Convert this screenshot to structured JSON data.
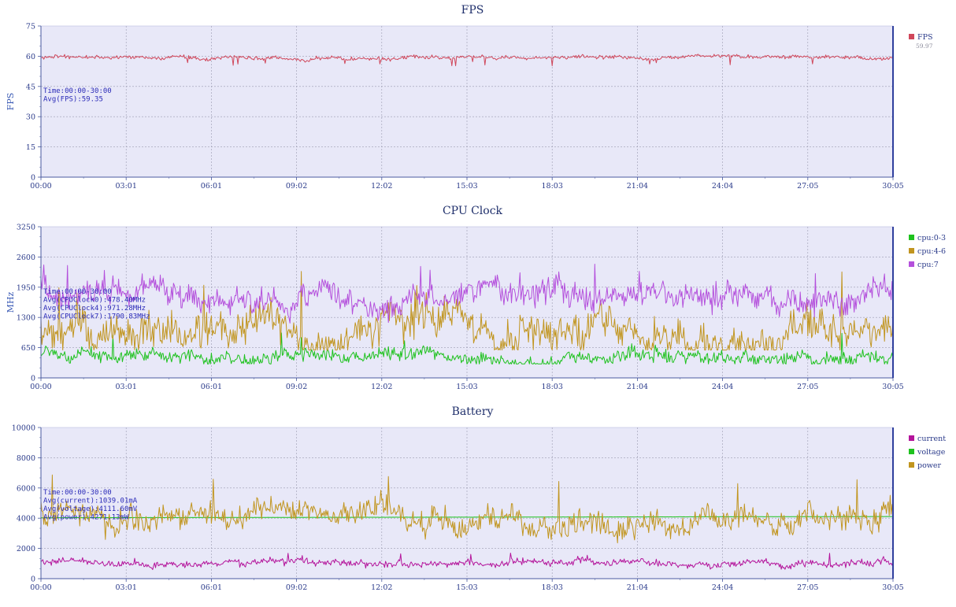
{
  "chart_data": [
    {
      "type": "line",
      "title": "FPS",
      "ylabel": "FPS",
      "ylim": [
        0,
        75
      ],
      "yticks": [
        "0",
        "15",
        "30",
        "45",
        "60",
        "75"
      ],
      "xticks": [
        "00:00",
        "03:01",
        "06:01",
        "09:02",
        "12:02",
        "15:03",
        "18:03",
        "21:04",
        "24:04",
        "27:05",
        "30:05"
      ],
      "x_range": [
        "00:00",
        "30:05"
      ],
      "grid": true,
      "legend_position": "right",
      "annotation": [
        "Time:00:00-30:00",
        "Avg(FPS):59.35"
      ],
      "series": [
        {
          "name": "FPS",
          "color": "#d0475b",
          "legend_value": "59.97",
          "approx_mean": 59.35,
          "approx_noise": 0.8,
          "approx_min": 55
        }
      ]
    },
    {
      "type": "line",
      "title": "CPU Clock",
      "ylabel": "MHz",
      "ylim": [
        0,
        3250
      ],
      "yticks": [
        "0",
        "650",
        "1300",
        "1950",
        "2600",
        "3250"
      ],
      "xticks": [
        "00:00",
        "03:01",
        "06:01",
        "09:02",
        "12:02",
        "15:03",
        "18:03",
        "21:04",
        "24:04",
        "27:05",
        "30:05"
      ],
      "x_range": [
        "00:00",
        "30:05"
      ],
      "grid": true,
      "legend_position": "right",
      "annotation": [
        "Time:00:00-30:00",
        "Avg(CPUClock0):478.40MHz",
        "Avg(CPUClock4):971.28MHz",
        "Avg(CPUClock7):1790.83MHz"
      ],
      "series": [
        {
          "name": "cpu:0-3",
          "color": "#1ec21e",
          "approx_mean": 478,
          "approx_noise": 120,
          "approx_min": 300,
          "approx_max": 1000
        },
        {
          "name": "cpu:4-6",
          "color": "#c1951f",
          "approx_mean": 971,
          "approx_noise": 350,
          "approx_min": 600,
          "approx_max": 2300
        },
        {
          "name": "cpu:7",
          "color": "#b450dc",
          "approx_mean": 1790,
          "approx_noise": 230,
          "approx_min": 1100,
          "approx_max": 2500
        }
      ]
    },
    {
      "type": "line",
      "title": "Battery",
      "ylabel": "",
      "ylim": [
        0,
        10000
      ],
      "yticks": [
        "0",
        "2000",
        "4000",
        "6000",
        "8000",
        "10000"
      ],
      "xticks": [
        "00:00",
        "03:01",
        "06:01",
        "09:02",
        "12:02",
        "15:03",
        "18:03",
        "21:04",
        "24:04",
        "27:05",
        "30:05"
      ],
      "x_range": [
        "00:00",
        "30:05"
      ],
      "grid": true,
      "legend_position": "right",
      "annotation": [
        "Time:00:00-30:00",
        "Avg(current):1039.01mA",
        "Avg(voltage):4111.60mV",
        "Avg(power):4271.13mW"
      ],
      "series": [
        {
          "name": "current",
          "color": "#b4149b",
          "approx_mean": 1039,
          "approx_noise": 180,
          "approx_min": 600,
          "approx_max": 1700
        },
        {
          "name": "voltage",
          "color": "#1ec21e",
          "approx_start": 4030,
          "approx_end": 4110
        },
        {
          "name": "power",
          "color": "#c1951f",
          "approx_mean": 4271,
          "approx_noise": 700,
          "approx_min": 2000,
          "approx_max": 7100
        }
      ]
    }
  ]
}
